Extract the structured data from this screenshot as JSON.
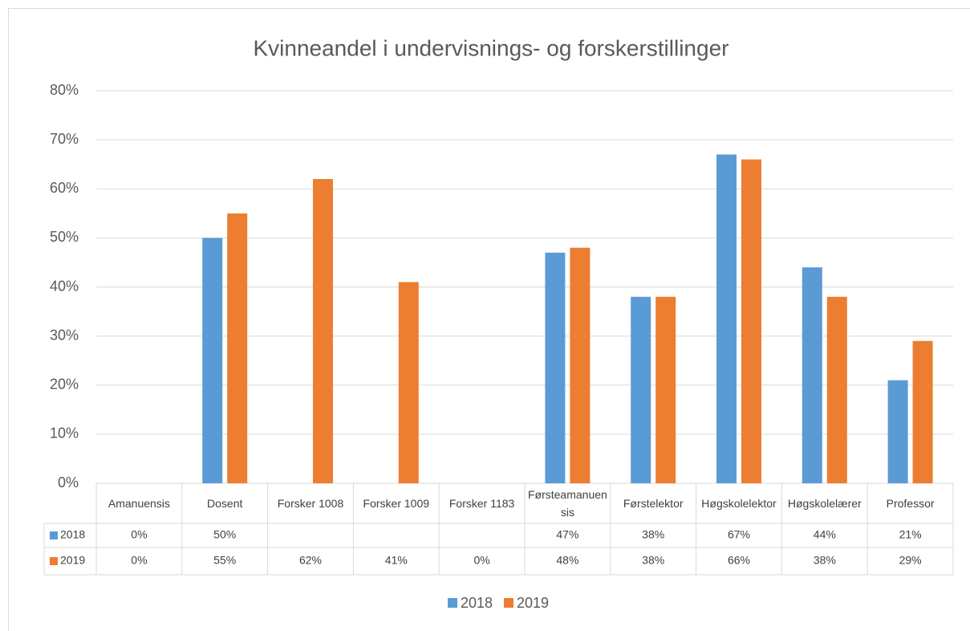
{
  "chart_data": {
    "type": "bar",
    "title": "Kvinneandel i undervisnings- og forskerstillinger",
    "categories": [
      "Amanuensis",
      "Dosent",
      "Forsker 1008",
      "Forsker 1009",
      "Forsker 1183",
      "Førsteamanuensis",
      "Førstelektor",
      "Høgskolelektor",
      "Høgskolelærer",
      "Professor"
    ],
    "series": [
      {
        "name": "2018",
        "color": "#5b9bd5",
        "values": [
          0,
          50,
          null,
          null,
          null,
          47,
          38,
          67,
          44,
          21
        ],
        "value_labels": [
          "0%",
          "50%",
          null,
          null,
          null,
          "47%",
          "38%",
          "67%",
          "44%",
          "21%"
        ]
      },
      {
        "name": "2019",
        "color": "#ed7d31",
        "values": [
          0,
          55,
          62,
          41,
          0,
          48,
          38,
          66,
          38,
          29
        ],
        "value_labels": [
          "0%",
          "55%",
          "62%",
          "41%",
          "0%",
          "48%",
          "38%",
          "66%",
          "38%",
          "29%"
        ]
      }
    ],
    "ylim": [
      0,
      80
    ],
    "yticks": [
      {
        "value": 0,
        "label": "0%"
      },
      {
        "value": 10,
        "label": "10%"
      },
      {
        "value": 20,
        "label": "20%"
      },
      {
        "value": 30,
        "label": "30%"
      },
      {
        "value": 40,
        "label": "40%"
      },
      {
        "value": 50,
        "label": "50%"
      },
      {
        "value": 60,
        "label": "60%"
      },
      {
        "value": 70,
        "label": "70%"
      },
      {
        "value": 80,
        "label": "80%"
      }
    ],
    "grid": true,
    "legend": "bottom"
  }
}
